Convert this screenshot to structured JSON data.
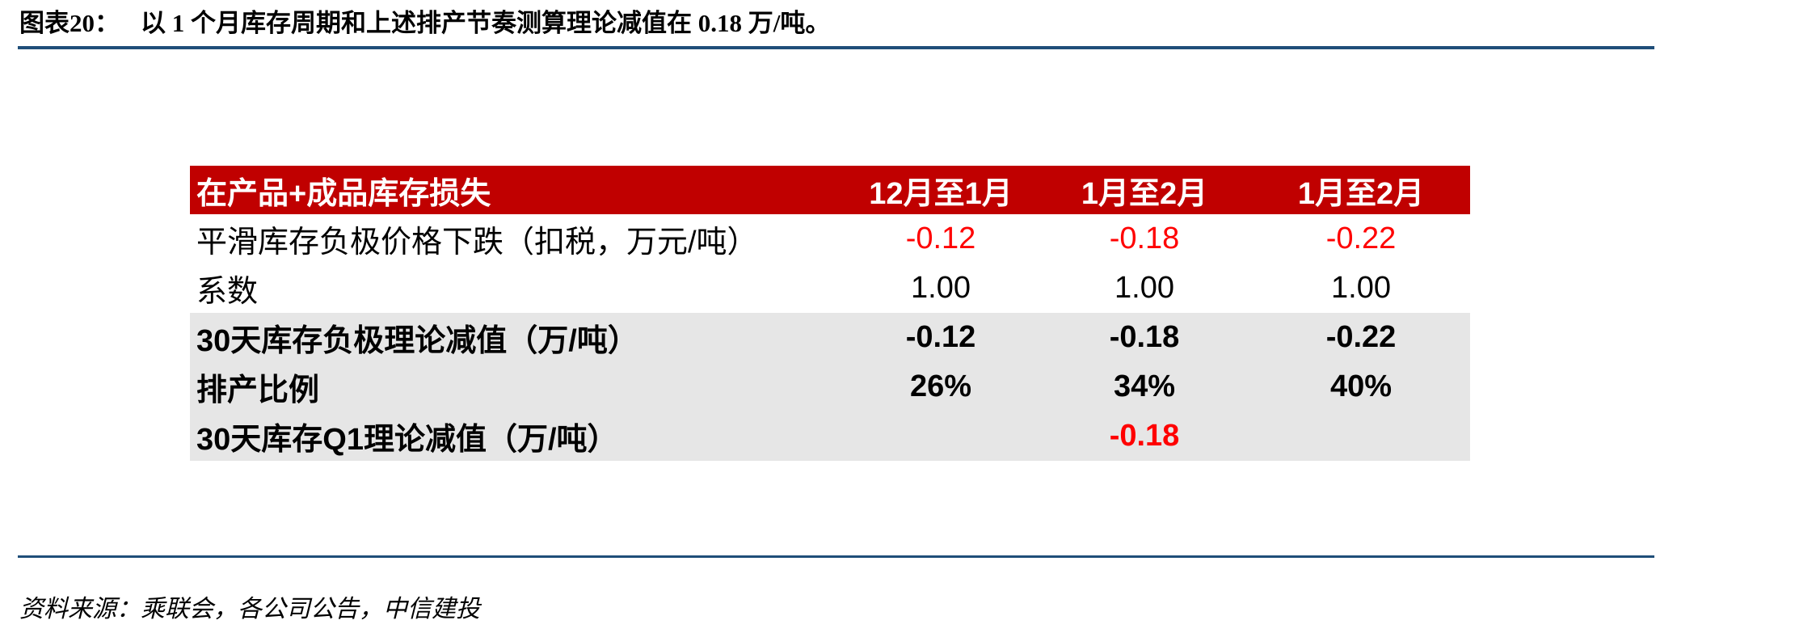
{
  "figure": {
    "label": "图表20：",
    "title": "以 1 个月库存周期和上述排产节奏测算理论减值在 0.18 万/吨。"
  },
  "table": {
    "header": {
      "label": "在产品+成品库存损失",
      "cols": [
        "12月至1月",
        "1月至2月",
        "1月至2月"
      ]
    },
    "rows": [
      {
        "label": "平滑库存负极价格下跌（扣税，万元/吨）",
        "values": [
          "-0.12",
          "-0.18",
          "-0.22"
        ]
      },
      {
        "label": "系数",
        "values": [
          "1.00",
          "1.00",
          "1.00"
        ]
      },
      {
        "label": "30天库存负极理论减值（万/吨）",
        "values": [
          "-0.12",
          "-0.18",
          "-0.22"
        ]
      },
      {
        "label": "排产比例",
        "values": [
          "26%",
          "34%",
          "40%"
        ]
      },
      {
        "label": "30天库存Q1理论减值（万/吨）",
        "values": [
          "",
          "-0.18",
          ""
        ]
      }
    ]
  },
  "colors": {
    "header_bg": "#c00000",
    "header_text": "#ffffff",
    "highlight_bg": "#e6e6e6",
    "negative_text": "#ff0000",
    "rule": "#1f4e79"
  },
  "source": "资料来源：乘联会，各公司公告，中信建投"
}
